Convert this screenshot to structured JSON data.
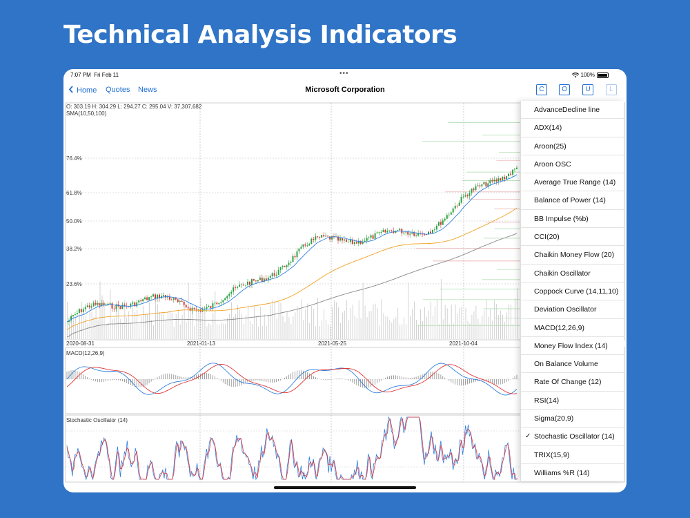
{
  "headline": "Technical Analysis Indicators",
  "status": {
    "time": "7:07 PM",
    "date": "Fri Feb 11",
    "battery": "100%"
  },
  "nav": {
    "home": "Home",
    "quotes": "Quotes",
    "news": "News",
    "title": "Microsoft Corporation",
    "buttons": [
      "C",
      "O",
      "U",
      "L"
    ]
  },
  "chart": {
    "ohlc": "O: 303.19  H: 304.29  L: 294.27  C: 295.04  V: 37,307,682",
    "sma_label": "SMA(10,50,100)",
    "fib_levels": [
      "76.4%",
      "61.8%",
      "50.0%",
      "38.2%",
      "23.6%"
    ],
    "dates": [
      "2020-08-31",
      "2021-01-13",
      "2021-05-25",
      "2021-10-04"
    ],
    "macd_label": "MACD(12,26,9)",
    "stoch_label": "Stochastic Oscillator (14)",
    "colors": {
      "up": "#2ea043",
      "down": "#d83a3a",
      "sma10": "#2f7fe0",
      "sma50": "#f0a020",
      "sma100": "#888888",
      "macd": "#2f7fe0",
      "signal": "#e03535"
    }
  },
  "indicators": [
    "AdvanceDecline line",
    "ADX(14)",
    "Aroon(25)",
    "Aroon OSC",
    "Average True Range (14)",
    "Balance of Power (14)",
    "BB Impulse (%b)",
    "CCI(20)",
    "Chaikin Money Flow (20)",
    "Chaikin Oscillator",
    "Coppock Curve (14,11,10)",
    "Deviation Oscillator",
    "MACD(12,26,9)",
    "Money Flow Index (14)",
    "On Balance Volume",
    "Rate Of Change (12)",
    "RSI(14)",
    "Sigma(20,9)",
    "Stochastic Oscillator (14)",
    "TRIX(15,9)",
    "Williams %R (14)"
  ],
  "selected_indicator": "Stochastic Oscillator (14)",
  "check_mark": "✓"
}
